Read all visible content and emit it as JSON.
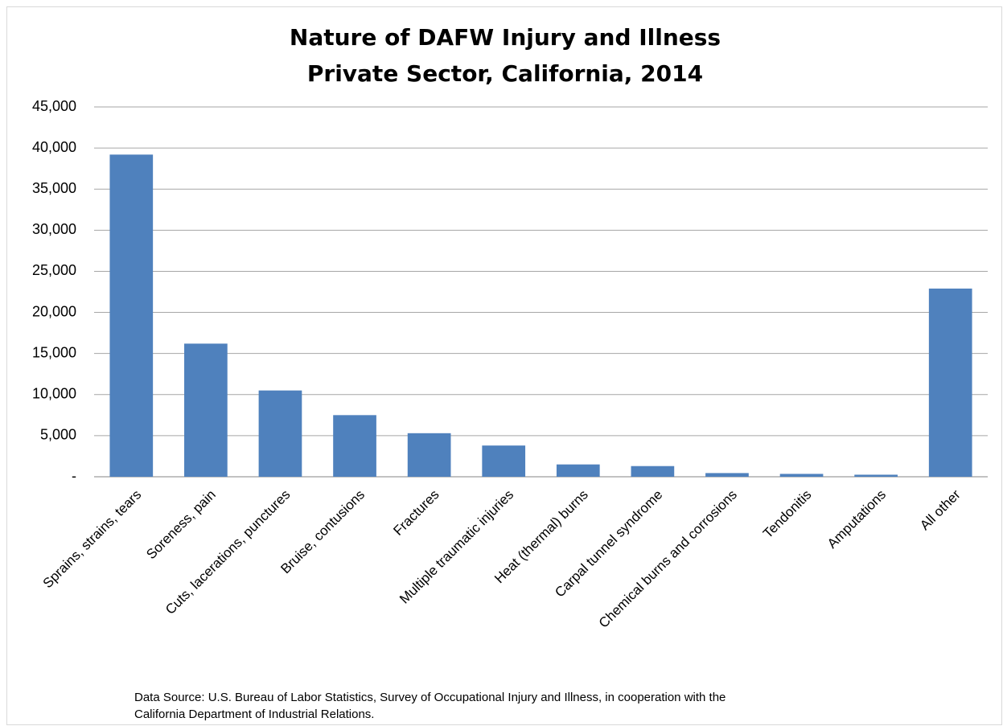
{
  "chart_data": {
    "type": "bar",
    "title": "Nature of DAFW Injury and Illness",
    "subtitle": "Private Sector, California, 2014",
    "categories": [
      "Sprains, strains, tears",
      "Soreness, pain",
      "Cuts, lacerations, punctures",
      "Bruise, contusions",
      "Fractures",
      "Multiple traumatic injuries",
      "Heat (thermal) burns",
      "Carpal tunnel syndrome",
      "Chemical burns and corrosions",
      "Tendonitis",
      "Amputations",
      "All other"
    ],
    "values": [
      39200,
      16200,
      10500,
      7500,
      5300,
      3800,
      1500,
      1300,
      450,
      350,
      250,
      22900
    ],
    "color": "#4f81bd",
    "ylim": [
      0,
      45000
    ],
    "yticks": [
      {
        "value": 0,
        "label": "-"
      },
      {
        "value": 5000,
        "label": "5,000"
      },
      {
        "value": 10000,
        "label": "10,000"
      },
      {
        "value": 15000,
        "label": "15,000"
      },
      {
        "value": 20000,
        "label": "20,000"
      },
      {
        "value": 25000,
        "label": "25,000"
      },
      {
        "value": 30000,
        "label": "30,000"
      },
      {
        "value": 35000,
        "label": "35,000"
      },
      {
        "value": 40000,
        "label": "40,000"
      },
      {
        "value": 45000,
        "label": "45,000"
      }
    ],
    "grid": true,
    "source": [
      "Data Source: U.S. Bureau of Labor Statistics, Survey of Occupational Injury and Illness, in cooperation with the",
      "California Department of Industrial Relations."
    ]
  }
}
